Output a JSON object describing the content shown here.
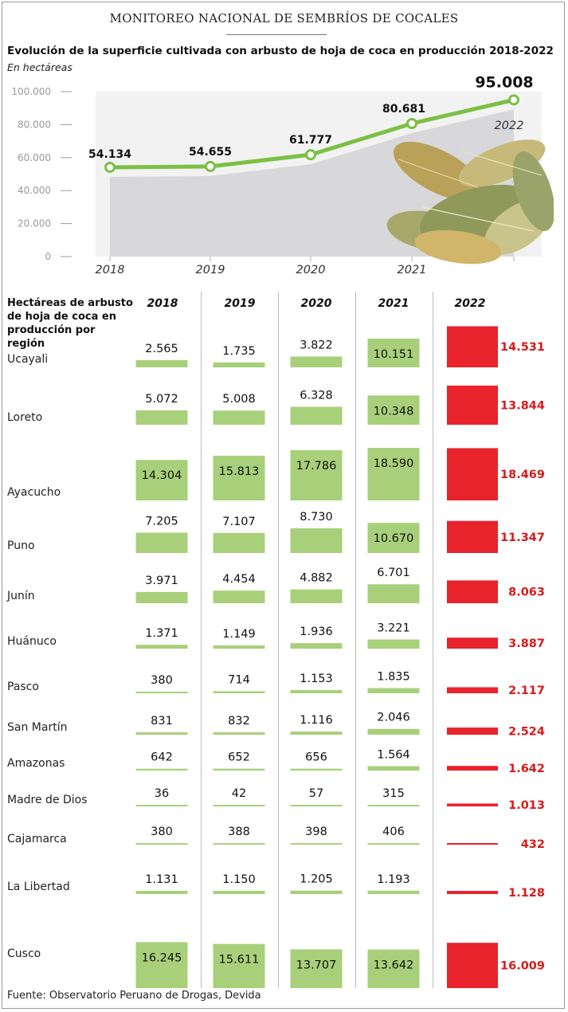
{
  "header": "MONITOREO NACIONAL DE SEMBRÍOS DE COCALES",
  "title": "Evolución de la superficie cultivada con arbusto de hoja de coca en producción 2018-2022",
  "subtitle": "En hectáreas",
  "source": "Fuente: Observatorio Peruano de Drogas, Devida",
  "colors": {
    "line": "#7bc043",
    "area": "#d8d8da",
    "bar_green": "#a8d07a",
    "bar_red": "#e8232b",
    "text_red": "#d91a1a"
  },
  "chart_data": [
    {
      "type": "line",
      "x": [
        "2018",
        "2019",
        "2020",
        "2021",
        "2022"
      ],
      "values": [
        54134,
        54655,
        61777,
        80681,
        95008
      ],
      "value_labels": [
        "54.134",
        "54.655",
        "61.777",
        "80.681",
        "95.008"
      ],
      "y_ticks": [
        "100.000",
        "80.000",
        "60.000",
        "40.000",
        "20.000",
        "0"
      ],
      "ylim": [
        0,
        100000
      ]
    },
    {
      "type": "bar",
      "row_header": "Hectáreas de arbusto de hoja de coca en producción por región",
      "years": [
        "2018",
        "2019",
        "2020",
        "2021",
        "2022"
      ],
      "regions": [
        {
          "name": "Ucayali",
          "values": [
            2565,
            1735,
            3822,
            10151,
            14531
          ],
          "labels": [
            "2.565",
            "1.735",
            "3.822",
            "10.151",
            "14.531"
          ]
        },
        {
          "name": "Loreto",
          "values": [
            5072,
            5008,
            6328,
            10348,
            13844
          ],
          "labels": [
            "5.072",
            "5.008",
            "6.328",
            "10.348",
            "13.844"
          ]
        },
        {
          "name": "Ayacucho",
          "values": [
            14304,
            15813,
            17786,
            18590,
            18469
          ],
          "labels": [
            "14.304",
            "15.813",
            "17.786",
            "18.590",
            "18.469"
          ]
        },
        {
          "name": "Puno",
          "values": [
            7205,
            7107,
            8730,
            10670,
            11347
          ],
          "labels": [
            "7.205",
            "7.107",
            "8.730",
            "10.670",
            "11.347"
          ]
        },
        {
          "name": "Junín",
          "values": [
            3971,
            4454,
            4882,
            6701,
            8063
          ],
          "labels": [
            "3.971",
            "4.454",
            "4.882",
            "6.701",
            "8.063"
          ]
        },
        {
          "name": "Huánuco",
          "values": [
            1371,
            1149,
            1936,
            3221,
            3887
          ],
          "labels": [
            "1.371",
            "1.149",
            "1.936",
            "3.221",
            "3.887"
          ]
        },
        {
          "name": "Pasco",
          "values": [
            380,
            714,
            1153,
            1835,
            2117
          ],
          "labels": [
            "380",
            "714",
            "1.153",
            "1.835",
            "2.117"
          ]
        },
        {
          "name": "San Martín",
          "values": [
            831,
            832,
            1116,
            2046,
            2524
          ],
          "labels": [
            "831",
            "832",
            "1.116",
            "2.046",
            "2.524"
          ]
        },
        {
          "name": "Amazonas",
          "values": [
            642,
            652,
            656,
            1564,
            1642
          ],
          "labels": [
            "642",
            "652",
            "656",
            "1.564",
            "1.642"
          ]
        },
        {
          "name": "Madre de Dios",
          "values": [
            36,
            42,
            57,
            315,
            1013
          ],
          "labels": [
            "36",
            "42",
            "57",
            "315",
            "1.013"
          ]
        },
        {
          "name": "Cajamarca",
          "values": [
            380,
            388,
            398,
            406,
            432
          ],
          "labels": [
            "380",
            "388",
            "398",
            "406",
            "432"
          ]
        },
        {
          "name": "La Libertad",
          "values": [
            1131,
            1150,
            1205,
            1193,
            1128
          ],
          "labels": [
            "1.131",
            "1.150",
            "1.205",
            "1.193",
            "1.128"
          ]
        },
        {
          "name": "Cusco",
          "values": [
            16245,
            15611,
            13707,
            13642,
            16009
          ],
          "labels": [
            "16.245",
            "15.611",
            "13.707",
            "13.642",
            "16.009"
          ]
        }
      ]
    }
  ]
}
